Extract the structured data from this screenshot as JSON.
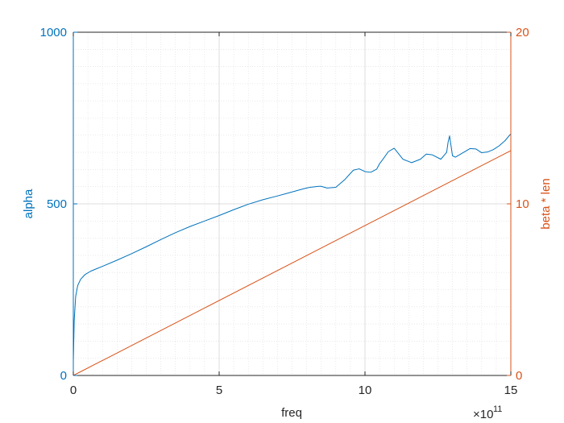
{
  "colors": {
    "left_axis": "#0072BD",
    "right_axis": "#D95319",
    "axis_black": "#262626",
    "grid": "#dcdcdc"
  },
  "chart_data": {
    "type": "line",
    "grid": true,
    "minor_grid": true,
    "xlabel": "freq",
    "x_exponent_label": "×10",
    "x_exponent_power": "11",
    "xlim": [
      0,
      15
    ],
    "x_ticks": [
      0,
      5,
      10,
      15
    ],
    "x_tick_labels": [
      "0",
      "5",
      "10",
      "15"
    ],
    "left_axis": {
      "label": "alpha",
      "ylim": [
        0,
        1000
      ],
      "ticks": [
        0,
        500,
        1000
      ],
      "tick_labels": [
        "0",
        "500",
        "1000"
      ]
    },
    "right_axis": {
      "label": "beta * len",
      "ylim": [
        0,
        20
      ],
      "ticks": [
        0,
        10,
        20
      ],
      "tick_labels": [
        "0",
        "10",
        "20"
      ]
    },
    "series": [
      {
        "axis": "left",
        "color": "#0072BD",
        "x": [
          0,
          0.03,
          0.08,
          0.15,
          0.25,
          0.4,
          0.6,
          0.8,
          1.0,
          1.5,
          2.0,
          2.5,
          3.0,
          3.5,
          4.0,
          4.5,
          5.0,
          5.5,
          6.0,
          6.5,
          7.0,
          7.3,
          7.6,
          7.9,
          8.1,
          8.3,
          8.4,
          8.5,
          8.7,
          9.0,
          9.3,
          9.6,
          9.8,
          10.0,
          10.2,
          10.4,
          10.5,
          10.6,
          10.8,
          11.0,
          11.3,
          11.6,
          11.9,
          12.1,
          12.3,
          12.6,
          12.8,
          12.85,
          12.9,
          13.0,
          13.1,
          13.4,
          13.6,
          13.8,
          14.0,
          14.2,
          14.4,
          14.6,
          14.8,
          15.0
        ],
        "y": [
          40,
          160,
          230,
          262,
          280,
          294,
          304,
          311,
          318,
          336,
          355,
          375,
          396,
          416,
          434,
          450,
          466,
          483,
          499,
          512,
          523,
          530,
          537,
          544,
          548,
          550,
          551,
          551,
          546,
          548,
          570,
          598,
          602,
          594,
          592,
          601,
          617,
          628,
          652,
          662,
          630,
          620,
          630,
          645,
          643,
          630,
          650,
          680,
          698,
          640,
          636,
          651,
          661,
          660,
          649,
          651,
          658,
          669,
          684,
          704
        ]
      },
      {
        "axis": "right",
        "color": "#D95319",
        "x": [
          0,
          15
        ],
        "y": [
          0,
          13.1
        ]
      }
    ]
  }
}
